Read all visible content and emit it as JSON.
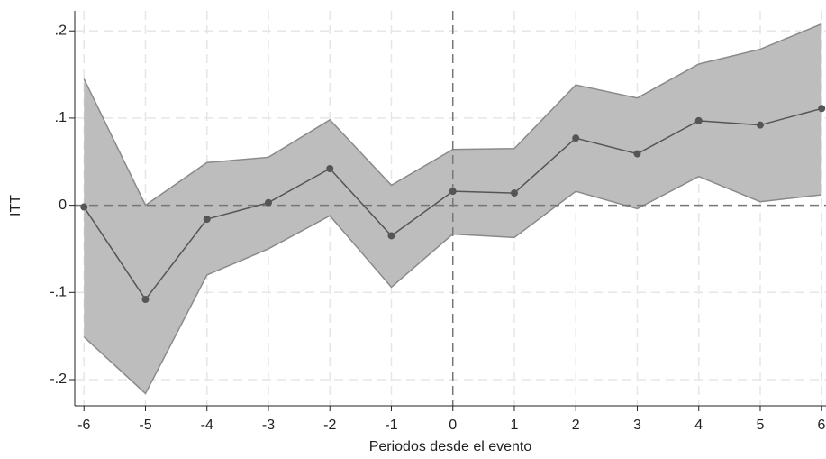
{
  "chart_data": {
    "type": "band-line",
    "x_label": "Periodos desde el evento",
    "y_label": "ITT",
    "x": [
      -6,
      -5,
      -4,
      -3,
      -2,
      -1,
      0,
      1,
      2,
      3,
      4,
      5,
      6
    ],
    "values": [
      -0.002,
      -0.108,
      -0.016,
      0.003,
      0.042,
      -0.035,
      0.016,
      0.014,
      0.077,
      0.059,
      0.097,
      0.092,
      0.111
    ],
    "ci_upper": [
      0.145,
      0.0,
      0.049,
      0.055,
      0.098,
      0.023,
      0.064,
      0.065,
      0.138,
      0.123,
      0.162,
      0.179,
      0.208
    ],
    "ci_lower": [
      -0.151,
      -0.216,
      -0.08,
      -0.05,
      -0.012,
      -0.094,
      -0.033,
      -0.037,
      0.016,
      -0.004,
      0.033,
      0.004,
      0.012
    ],
    "color": "#555555",
    "band_color": "#bdbdbd",
    "band_edge_color": "#8a8a8a",
    "xlim": [
      -6.15,
      6.07
    ],
    "ylim": [
      -0.23,
      0.223
    ],
    "xticks": [
      -6,
      -5,
      -4,
      -3,
      -2,
      -1,
      0,
      1,
      2,
      3,
      4,
      5,
      6
    ],
    "yticks": [
      {
        "value": -0.2,
        "label": "-.2"
      },
      {
        "value": -0.1,
        "label": "-.1"
      },
      0,
      {
        "value": 0.1,
        "label": ".1"
      },
      {
        "value": 0.2,
        "label": ".2"
      }
    ],
    "hline": 0,
    "vline": 0,
    "grid": true
  }
}
